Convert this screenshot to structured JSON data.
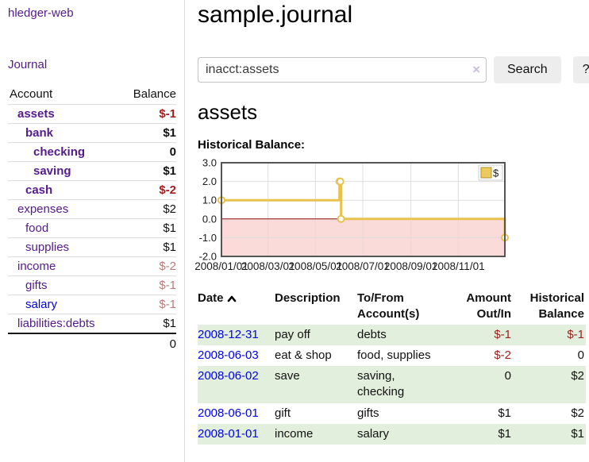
{
  "app": {
    "title": "hledger-web"
  },
  "sidebar": {
    "journal_link": "Journal",
    "headers": {
      "account": "Account",
      "balance": "Balance"
    },
    "accounts": [
      {
        "name": "assets",
        "indent": 1,
        "bold": true,
        "blue": false,
        "balance": "$-1",
        "balance_class": "neg"
      },
      {
        "name": "bank",
        "indent": 2,
        "bold": true,
        "blue": false,
        "balance": "$1",
        "balance_class": ""
      },
      {
        "name": "checking",
        "indent": 3,
        "bold": true,
        "blue": false,
        "balance": "0",
        "balance_class": ""
      },
      {
        "name": "saving",
        "indent": 3,
        "bold": true,
        "blue": false,
        "balance": "$1",
        "balance_class": ""
      },
      {
        "name": "cash",
        "indent": 2,
        "bold": true,
        "blue": false,
        "balance": "$-2",
        "balance_class": "neg"
      },
      {
        "name": "expenses",
        "indent": 1,
        "bold": false,
        "blue": false,
        "balance": "$2",
        "balance_class": ""
      },
      {
        "name": "food",
        "indent": 2,
        "bold": false,
        "blue": false,
        "balance": "$1",
        "balance_class": ""
      },
      {
        "name": "supplies",
        "indent": 2,
        "bold": false,
        "blue": false,
        "balance": "$1",
        "balance_class": ""
      },
      {
        "name": "income",
        "indent": 1,
        "bold": false,
        "blue": false,
        "balance": "$-2",
        "balance_class": "negmuted"
      },
      {
        "name": "gifts",
        "indent": 2,
        "bold": false,
        "blue": false,
        "balance": "$-1",
        "balance_class": "negmuted"
      },
      {
        "name": "salary",
        "indent": 2,
        "bold": false,
        "blue": true,
        "balance": "$-1",
        "balance_class": "negmuted"
      },
      {
        "name": "liabilities:debts",
        "indent": 1,
        "bold": false,
        "blue": false,
        "balance": "$1",
        "balance_class": ""
      }
    ],
    "total": "0"
  },
  "main": {
    "title": "sample.journal",
    "search": {
      "value": "inacct:assets",
      "clear": "×",
      "button": "Search",
      "help": "?"
    },
    "account_heading": "assets",
    "chart_label": "Historical Balance:"
  },
  "chart_data": {
    "type": "line",
    "step": true,
    "title": "Historical Balance",
    "xlabel": "",
    "ylabel": "",
    "xlim": [
      "2008-01-01",
      "2008-12-31"
    ],
    "ylim": [
      -2,
      3
    ],
    "yticks": [
      3,
      2,
      1,
      0,
      -1,
      -2
    ],
    "xticks": [
      "2008/01/01",
      "2008/03/01",
      "2008/05/01",
      "2008/07/01",
      "2008/09/01",
      "2008/11/01"
    ],
    "grid": true,
    "legend_position": "top-right",
    "series": [
      {
        "name": "$",
        "points": [
          [
            "2008-01-01",
            1
          ],
          [
            "2008-06-01",
            2
          ],
          [
            "2008-06-02",
            2
          ],
          [
            "2008-06-03",
            0
          ],
          [
            "2008-12-31",
            -1
          ]
        ]
      }
    ],
    "colors": {
      "line": "#e9c24e",
      "marker_fill": "#ffffff",
      "negative_region": "#fbdada",
      "zero_line": "#8f1010",
      "grid": "#dddddd",
      "border": "#555555",
      "legend_fill": "#edc95e",
      "legend_border": "#b1922f"
    }
  },
  "register": {
    "headers": {
      "date": "Date",
      "description": "Description",
      "accounts": "To/From Account(s)",
      "amount": "Amount Out/In",
      "balance": "Historical Balance"
    },
    "rows": [
      {
        "date": "2008-12-31",
        "description": "pay off",
        "accounts": "debts",
        "amount": "$-1",
        "amount_class": "neg",
        "balance": "$-1",
        "balance_class": "neg"
      },
      {
        "date": "2008-06-03",
        "description": "eat & shop",
        "accounts": "food, supplies",
        "amount": "$-2",
        "amount_class": "neg",
        "balance": "0",
        "balance_class": ""
      },
      {
        "date": "2008-06-02",
        "description": "save",
        "accounts": "saving, checking",
        "amount": "0",
        "amount_class": "",
        "balance": "$2",
        "balance_class": ""
      },
      {
        "date": "2008-06-01",
        "description": "gift",
        "accounts": "gifts",
        "amount": "$1",
        "amount_class": "",
        "balance": "$2",
        "balance_class": ""
      },
      {
        "date": "2008-01-01",
        "description": "income",
        "accounts": "salary",
        "amount": "$1",
        "amount_class": "",
        "balance": "$1",
        "balance_class": ""
      }
    ]
  },
  "colors": {
    "link_purple": "#551a8b",
    "link_blue": "#0000ee",
    "negative_strong": "#9e1f1f",
    "negative_muted": "#bd7b7b",
    "stripe_green": "#e3efdd"
  }
}
